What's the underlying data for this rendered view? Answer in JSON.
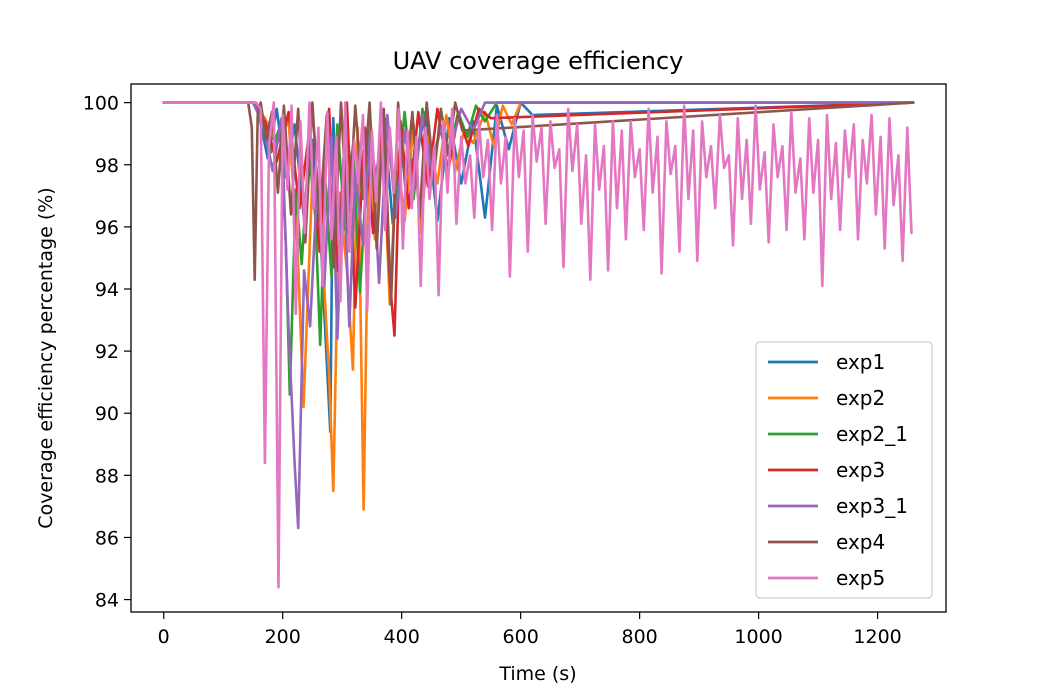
{
  "chart_data": {
    "type": "line",
    "title": "UAV coverage efficiency",
    "xlabel": "Time (s)",
    "ylabel": "Coverage efficiency percentage (%)",
    "xlim": [
      -55,
      1315
    ],
    "ylim": [
      83.6,
      100.6
    ],
    "xticks": [
      0,
      200,
      400,
      600,
      800,
      1000,
      1200
    ],
    "yticks": [
      84,
      86,
      88,
      90,
      92,
      94,
      96,
      98,
      100
    ],
    "grid": false,
    "legend_position": "lower-right",
    "series": [
      {
        "name": "exp1",
        "color": "#1f77b4",
        "x": [
          0,
          150,
          160,
          175,
          190,
          205,
          220,
          235,
          250,
          265,
          280,
          285,
          295,
          310,
          325,
          340,
          355,
          370,
          385,
          400,
          420,
          440,
          460,
          480,
          500,
          520,
          540,
          560,
          580,
          600,
          620,
          1260
        ],
        "y": [
          100,
          100,
          99.6,
          98.2,
          99.8,
          97.6,
          99.3,
          96.4,
          98.8,
          95.1,
          89.4,
          99.5,
          94.2,
          98.6,
          96.8,
          99.1,
          97.3,
          99.6,
          96.1,
          99.2,
          97.9,
          99.7,
          96.2,
          99.5,
          97.4,
          99.4,
          96.3,
          99.9,
          98.5,
          100,
          99.6,
          100
        ]
      },
      {
        "name": "exp2",
        "color": "#ff7f0e",
        "x": [
          0,
          150,
          170,
          190,
          210,
          225,
          235,
          250,
          265,
          278,
          285,
          295,
          308,
          318,
          326,
          336,
          345,
          355,
          368,
          380,
          392,
          405,
          420,
          432,
          445,
          460,
          475,
          490,
          505,
          520,
          540,
          555,
          570,
          585,
          600,
          1260
        ],
        "y": [
          100,
          100,
          99.5,
          98.7,
          99.4,
          95.3,
          90.2,
          97.6,
          95.8,
          91.2,
          87.5,
          97.1,
          94.6,
          91.4,
          99.2,
          86.9,
          98.3,
          95.6,
          99.1,
          93.5,
          98.4,
          96.2,
          99.3,
          95.8,
          98.9,
          97.4,
          99.6,
          97.8,
          99.1,
          98.7,
          99.7,
          98.6,
          99.9,
          99.3,
          100,
          100
        ]
      },
      {
        "name": "exp2_1",
        "color": "#2ca02c",
        "x": [
          0,
          150,
          165,
          180,
          195,
          205,
          212,
          222,
          232,
          244,
          255,
          263,
          272,
          282,
          292,
          305,
          318,
          330,
          345,
          360,
          375,
          390,
          405,
          420,
          435,
          450,
          465,
          480,
          495,
          510,
          525,
          540,
          560,
          1260
        ],
        "y": [
          100,
          100,
          99.6,
          98.4,
          99.2,
          95.6,
          90.6,
          97.2,
          94.8,
          98.5,
          96.3,
          92.2,
          97.4,
          94.4,
          99.3,
          95.9,
          98.6,
          93.9,
          99.1,
          97.2,
          99.5,
          96.5,
          99.7,
          96.9,
          99.8,
          97.6,
          99.2,
          98.4,
          99.7,
          98.9,
          99.9,
          99.4,
          100,
          100
        ]
      },
      {
        "name": "exp3",
        "color": "#d62728",
        "x": [
          0,
          150,
          170,
          190,
          210,
          228,
          245,
          262,
          278,
          292,
          308,
          322,
          338,
          352,
          366,
          380,
          388,
          398,
          412,
          428,
          444,
          460,
          478,
          495,
          512,
          530,
          550,
          1260
        ],
        "y": [
          100,
          100,
          99.4,
          98.1,
          99.7,
          96.6,
          99.1,
          95.2,
          99.8,
          94.6,
          100,
          93.4,
          99.2,
          95.8,
          99.6,
          94.3,
          92.5,
          99.4,
          96.6,
          99.7,
          97.3,
          99.8,
          97.8,
          99.6,
          98.6,
          99.8,
          99.5,
          100
        ]
      },
      {
        "name": "exp3_1",
        "color": "#9467bd",
        "x": [
          0,
          150,
          168,
          183,
          198,
          210,
          220,
          226,
          236,
          246,
          258,
          270,
          282,
          292,
          302,
          312,
          322,
          335,
          348,
          362,
          376,
          390,
          405,
          420,
          435,
          450,
          465,
          480,
          500,
          520,
          540,
          1260
        ],
        "y": [
          100,
          100,
          99.3,
          97.8,
          99.5,
          92.7,
          88.4,
          86.3,
          94.6,
          92.8,
          97.4,
          94.1,
          98.9,
          92.4,
          98.2,
          92.8,
          97.8,
          95.4,
          99.3,
          94.2,
          99.6,
          96.3,
          99.1,
          97.2,
          99.6,
          97.9,
          99.2,
          98.4,
          99.8,
          99.1,
          100,
          100
        ]
      },
      {
        "name": "exp4",
        "color": "#8c564b",
        "x": [
          0,
          142,
          148,
          153,
          158,
          163,
          172,
          182,
          192,
          202,
          214,
          226,
          238,
          250,
          262,
          274,
          286,
          298,
          310,
          322,
          334,
          346,
          358,
          370,
          382,
          394,
          406,
          418,
          430,
          442,
          454,
          466,
          478,
          490,
          502,
          1260
        ],
        "y": [
          100,
          100,
          99.2,
          94.3,
          99.6,
          100,
          98.8,
          99.7,
          97.1,
          99.9,
          96.4,
          99.8,
          95.5,
          100,
          96.2,
          99.6,
          94.7,
          100,
          95.8,
          99.9,
          96.9,
          100,
          95.3,
          99.8,
          93.5,
          100,
          97.3,
          99.7,
          96.3,
          100,
          97.6,
          99.8,
          98.3,
          100,
          99.1,
          100
        ]
      },
      {
        "name": "exp5",
        "color": "#e377c2",
        "x": [
          0,
          155,
          163,
          170,
          177,
          185,
          193,
          200,
          208,
          215,
          222,
          230,
          237,
          245,
          252,
          260,
          267,
          275,
          282,
          290,
          297,
          305,
          312,
          320,
          327,
          335,
          342,
          350,
          357,
          365,
          372,
          380,
          387,
          395,
          402,
          410,
          417,
          425,
          432,
          440,
          447,
          455,
          462,
          470,
          477,
          485,
          492,
          500,
          507,
          515,
          522,
          530,
          537,
          545,
          552,
          560,
          567,
          575,
          582,
          590,
          597,
          605,
          612,
          620,
          627,
          635,
          642,
          650,
          657,
          665,
          672,
          680,
          687,
          695,
          702,
          710,
          717,
          725,
          732,
          740,
          747,
          755,
          762,
          770,
          777,
          785,
          792,
          800,
          807,
          815,
          822,
          830,
          837,
          845,
          852,
          860,
          867,
          875,
          882,
          890,
          897,
          905,
          912,
          920,
          927,
          935,
          942,
          950,
          957,
          965,
          972,
          980,
          987,
          995,
          1002,
          1010,
          1017,
          1025,
          1032,
          1040,
          1047,
          1055,
          1062,
          1070,
          1077,
          1085,
          1092,
          1100,
          1107,
          1115,
          1122,
          1130,
          1137,
          1145,
          1152,
          1160,
          1167,
          1175,
          1182,
          1190,
          1197,
          1205,
          1212,
          1220,
          1227,
          1235,
          1242,
          1250,
          1257
        ],
        "y": [
          100,
          100,
          99.8,
          88.4,
          98.6,
          100,
          84.4,
          99.6,
          97.2,
          99.9,
          93.2,
          99.4,
          95.8,
          100,
          96.6,
          99.2,
          94.1,
          99.7,
          95.6,
          98.9,
          93.6,
          100,
          95.2,
          98.8,
          97.4,
          99.6,
          93.3,
          99.1,
          96.8,
          100,
          95.9,
          99.2,
          97.1,
          99.8,
          95.3,
          99.1,
          96.6,
          98.9,
          94.1,
          99.2,
          96.9,
          98.6,
          93.8,
          99.4,
          97.1,
          99.8,
          96.1,
          98.9,
          97.4,
          98.3,
          96.3,
          99.4,
          97.6,
          98.8,
          95.9,
          99.6,
          97.4,
          98.9,
          94.4,
          99.5,
          97.6,
          99.1,
          95.2,
          99.6,
          98.1,
          99.2,
          96.1,
          99.4,
          97.9,
          98.5,
          94.7,
          99.8,
          97.8,
          99.3,
          96.1,
          98.3,
          94.3,
          99.3,
          97.2,
          98.6,
          94.6,
          99.4,
          96.6,
          99.1,
          95.6,
          99.4,
          97.6,
          98.5,
          95.9,
          99.8,
          97.1,
          98.9,
          94.5,
          99.4,
          97.7,
          98.6,
          95.2,
          99.9,
          96.9,
          99.1,
          94.9,
          99.4,
          97.6,
          98.6,
          96.6,
          99.6,
          97.9,
          98.3,
          95.4,
          99.5,
          96.9,
          98.8,
          96.1,
          99.9,
          97.2,
          98.4,
          95.5,
          99.3,
          97.6,
          98.6,
          95.9,
          99.7,
          97.1,
          98.2,
          95.6,
          99.5,
          97.1,
          98.8,
          94.1,
          99.6,
          96.9,
          98.7,
          95.9,
          99.1,
          97.6,
          99.3,
          95.6,
          98.8,
          97.4,
          99.6,
          96.4,
          98.9,
          95.3,
          99.5,
          96.7,
          98.3,
          94.9,
          99.2,
          95.8
        ]
      }
    ]
  }
}
